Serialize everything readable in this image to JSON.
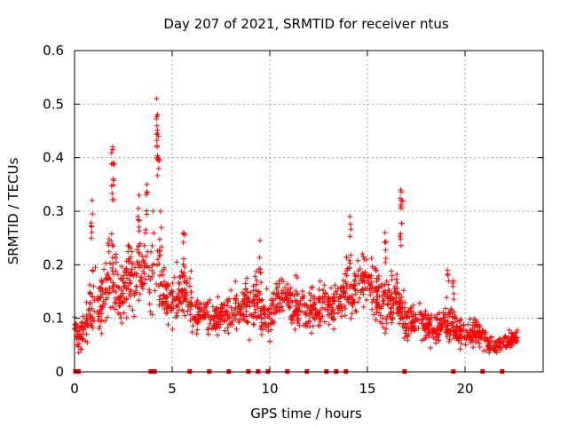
{
  "chart_data": {
    "type": "scatter",
    "title": "Day 207 of 2021, SRMTID for receiver ntus",
    "xlabel": "GPS time / hours",
    "ylabel": "SRMTID / TECUs",
    "xlim": [
      0,
      24
    ],
    "ylim": [
      0,
      0.6
    ],
    "xticks": [
      0,
      5,
      10,
      15,
      20
    ],
    "yticks": [
      0,
      0.1,
      0.2,
      0.3,
      0.4,
      0.5,
      0.6
    ],
    "grid": true,
    "marker": "plus",
    "series_color": "#ff0000",
    "gap_marks_x": [
      0.05,
      0.2,
      3.9,
      4.1,
      5.9,
      6.9,
      7.9,
      8.9,
      9.4,
      9.9,
      10.9,
      11.9,
      12.9,
      13.4,
      13.9,
      16.9,
      19.4,
      20.9,
      21.9
    ],
    "envelope": [
      [
        0.0,
        0.085,
        0.02
      ],
      [
        0.2,
        0.07,
        0.03
      ],
      [
        0.5,
        0.08,
        0.035
      ],
      [
        0.8,
        0.12,
        0.05
      ],
      [
        1.0,
        0.15,
        0.07
      ],
      [
        1.3,
        0.13,
        0.05
      ],
      [
        1.6,
        0.15,
        0.07
      ],
      [
        1.9,
        0.2,
        0.09
      ],
      [
        2.2,
        0.14,
        0.05
      ],
      [
        2.5,
        0.15,
        0.05
      ],
      [
        2.8,
        0.18,
        0.06
      ],
      [
        3.1,
        0.17,
        0.05
      ],
      [
        3.4,
        0.19,
        0.07
      ],
      [
        3.7,
        0.18,
        0.07
      ],
      [
        4.0,
        0.2,
        0.09
      ],
      [
        4.3,
        0.17,
        0.07
      ],
      [
        4.6,
        0.15,
        0.05
      ],
      [
        5.0,
        0.13,
        0.04
      ],
      [
        5.5,
        0.15,
        0.05
      ],
      [
        5.9,
        0.14,
        0.05
      ],
      [
        6.3,
        0.1,
        0.03
      ],
      [
        6.7,
        0.12,
        0.03
      ],
      [
        7.0,
        0.1,
        0.04
      ],
      [
        7.5,
        0.1,
        0.03
      ],
      [
        8.0,
        0.11,
        0.04
      ],
      [
        8.5,
        0.12,
        0.04
      ],
      [
        9.0,
        0.13,
        0.05
      ],
      [
        9.5,
        0.12,
        0.05
      ],
      [
        10.0,
        0.1,
        0.04
      ],
      [
        10.5,
        0.15,
        0.04
      ],
      [
        11.0,
        0.13,
        0.04
      ],
      [
        11.5,
        0.12,
        0.04
      ],
      [
        12.0,
        0.11,
        0.04
      ],
      [
        12.5,
        0.13,
        0.04
      ],
      [
        13.0,
        0.12,
        0.04
      ],
      [
        13.5,
        0.12,
        0.04
      ],
      [
        14.0,
        0.16,
        0.05
      ],
      [
        14.5,
        0.15,
        0.05
      ],
      [
        15.0,
        0.18,
        0.05
      ],
      [
        15.5,
        0.15,
        0.05
      ],
      [
        16.0,
        0.13,
        0.05
      ],
      [
        16.5,
        0.14,
        0.05
      ],
      [
        17.0,
        0.09,
        0.03
      ],
      [
        17.5,
        0.1,
        0.03
      ],
      [
        18.0,
        0.08,
        0.03
      ],
      [
        18.5,
        0.08,
        0.03
      ],
      [
        19.0,
        0.09,
        0.03
      ],
      [
        19.5,
        0.08,
        0.03
      ],
      [
        20.0,
        0.07,
        0.025
      ],
      [
        20.5,
        0.075,
        0.025
      ],
      [
        21.0,
        0.06,
        0.02
      ],
      [
        21.5,
        0.045,
        0.015
      ],
      [
        22.0,
        0.055,
        0.018
      ],
      [
        22.3,
        0.06,
        0.015
      ],
      [
        22.7,
        0.065,
        0.012
      ]
    ],
    "spikes": [
      [
        0.9,
        0.32
      ],
      [
        1.95,
        0.42
      ],
      [
        2.0,
        0.39
      ],
      [
        3.3,
        0.33
      ],
      [
        3.7,
        0.35
      ],
      [
        4.2,
        0.51
      ],
      [
        4.25,
        0.48
      ],
      [
        4.3,
        0.44
      ],
      [
        4.4,
        0.3
      ],
      [
        5.6,
        0.26
      ],
      [
        9.5,
        0.245
      ],
      [
        14.1,
        0.29
      ],
      [
        15.9,
        0.26
      ],
      [
        16.7,
        0.34
      ],
      [
        16.75,
        0.32
      ],
      [
        19.1,
        0.19
      ],
      [
        19.4,
        0.17
      ]
    ]
  }
}
